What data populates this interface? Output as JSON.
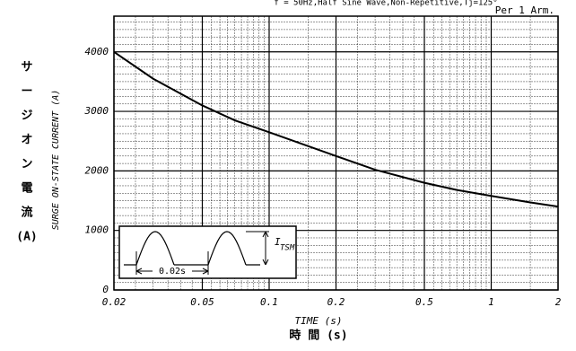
{
  "chart_data": {
    "type": "line",
    "subtitle": "f = 50Hz,Half Sine Wave,Non-Repetitive,Tj=125°",
    "annotation": "Per 1 Arm.",
    "x_label": "TIME (s)",
    "x_label_ja": "時 間 (s)",
    "y_label": "SURGE ON-STATE CURRENT (A)",
    "y_label_ja": [
      "サ",
      "ー",
      "ジ",
      "オ",
      "ン",
      "電",
      "流",
      "(A)"
    ],
    "x": [
      0.02,
      0.03,
      0.05,
      0.07,
      0.1,
      0.2,
      0.3,
      0.5,
      0.7,
      1,
      1.5,
      2
    ],
    "series": [
      {
        "name": "Surge current",
        "color": "#000000",
        "values": [
          4000,
          3550,
          3100,
          2850,
          2650,
          2250,
          2020,
          1800,
          1680,
          1580,
          1470,
          1400
        ]
      }
    ],
    "xlim": [
      0.02,
      2
    ],
    "xticks": [
      0.02,
      0.05,
      0.1,
      0.2,
      0.5,
      1,
      2
    ],
    "xscale": "log",
    "ylim": [
      0,
      4600
    ],
    "yticks": [
      0,
      1000,
      2000,
      3000,
      4000
    ],
    "grid": true,
    "minor_grid": true,
    "inset": {
      "peak_label": "I",
      "peak_subscript": "TSM",
      "period_label": "0.02s"
    }
  }
}
